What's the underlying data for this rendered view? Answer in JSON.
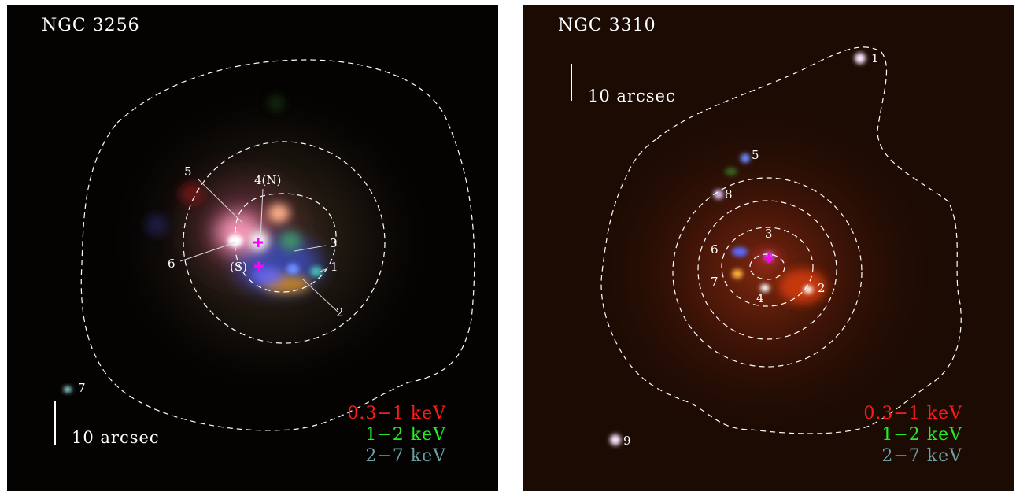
{
  "panels": [
    {
      "title": "NGC 3256",
      "scale_label": "10 arcsec",
      "legend": [
        {
          "text": "0.3−1 keV",
          "color": "#ff1a1a"
        },
        {
          "text": "1−2 keV",
          "color": "#22ee22"
        },
        {
          "text": "2−7 keV",
          "color": "#6c9fa5"
        }
      ],
      "sources": {
        "s1": "1",
        "s2": "2",
        "s3": "3",
        "s4": "4(N)",
        "s5": "5",
        "s6": "6",
        "s7": "7",
        "sS": "(S)"
      }
    },
    {
      "title": "NGC 3310",
      "scale_label": "10 arcsec",
      "legend": [
        {
          "text": "0.3−1 keV",
          "color": "#ff1a1a"
        },
        {
          "text": "1−2 keV",
          "color": "#22ee22"
        },
        {
          "text": "2−7 keV",
          "color": "#6c9fa5"
        }
      ],
      "sources": {
        "s1": "1",
        "s2": "2",
        "s3": "3",
        "s4": "4",
        "s5": "5",
        "s6": "6",
        "s7": "7",
        "s8": "8",
        "s9": "9"
      }
    }
  ],
  "colors": {
    "nucleus_marker": "#ff00ff",
    "contour": "#ffffff"
  }
}
